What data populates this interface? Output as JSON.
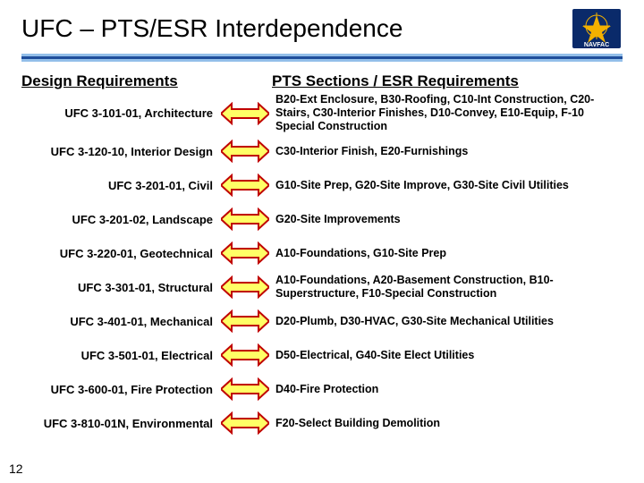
{
  "title": "UFC – PTS/ESR  Interdependence",
  "page_number": "12",
  "colors": {
    "rule_light": "#93bfe9",
    "rule_dark": "#1f4e9b",
    "arrow_fill": "#ffff66",
    "arrow_stroke": "#c00000",
    "logo_bg": "#0a2a6a",
    "logo_gold": "#f3b100"
  },
  "headers": {
    "left": "Design Requirements",
    "right": "PTS Sections / ESR Requirements"
  },
  "items": [
    {
      "left": "UFC 3-101-01, Architecture",
      "right": "B20-Ext Enclosure, B30-Roofing, C10-Int Construction, C20-Stairs, C30-Interior Finishes, D10-Convey, E10-Equip, F-10 Special Construction"
    },
    {
      "left": "UFC 3-120-10, Interior Design",
      "right": "C30-Interior Finish, E20-Furnishings"
    },
    {
      "left": "UFC 3-201-01, Civil",
      "right": "G10-Site Prep, G20-Site Improve, G30-Site Civil Utilities"
    },
    {
      "left": "UFC 3-201-02,  Landscape",
      "right": "G20-Site Improvements"
    },
    {
      "left": "UFC 3-220-01, Geotechnical",
      "right": "A10-Foundations, G10-Site Prep"
    },
    {
      "left": "UFC 3-301-01, Structural",
      "right": "A10-Foundations, A20-Basement Construction, B10-Superstructure, F10-Special Construction"
    },
    {
      "left": "UFC 3-401-01, Mechanical",
      "right": "D20-Plumb, D30-HVAC, G30-Site Mechanical Utilities"
    },
    {
      "left": "UFC 3-501-01, Electrical",
      "right": "D50-Electrical, G40-Site Elect Utilities"
    },
    {
      "left": "UFC 3-600-01, Fire Protection",
      "right": "D40-Fire Protection"
    },
    {
      "left": "UFC 3-810-01N, Environmental",
      "right": "F20-Select Building Demolition"
    }
  ]
}
